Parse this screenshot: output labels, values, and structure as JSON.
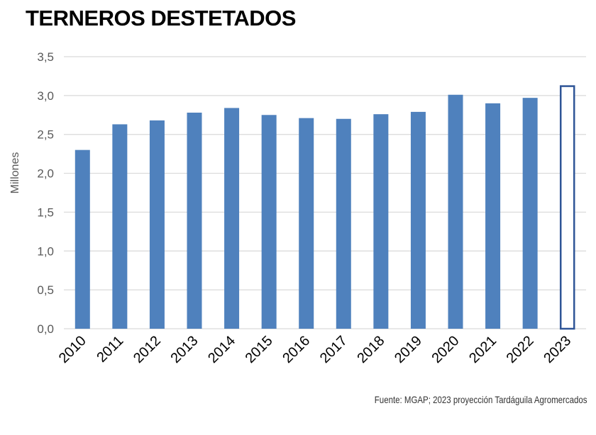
{
  "colors": {
    "bar_fill": "#4f81bd",
    "projected_outline": "#2f5597",
    "grid": "#d9d9d9",
    "tick_text": "#595959"
  },
  "source": "Fuente: MGAP; 2023 proyección Tardáguila Agromercados",
  "chart_data": {
    "type": "bar",
    "title": "TERNEROS DESTETADOS",
    "xlabel": "",
    "ylabel": "Millones",
    "categories": [
      "2010",
      "2011",
      "2012",
      "2013",
      "2014",
      "2015",
      "2016",
      "2017",
      "2018",
      "2019",
      "2020",
      "2021",
      "2022",
      "2023"
    ],
    "values": [
      2.3,
      2.63,
      2.68,
      2.78,
      2.84,
      2.75,
      2.71,
      2.7,
      2.76,
      2.79,
      3.01,
      2.9,
      2.97,
      3.13
    ],
    "projected": [
      false,
      false,
      false,
      false,
      false,
      false,
      false,
      false,
      false,
      false,
      false,
      false,
      false,
      true
    ],
    "ylim": [
      0,
      3.5
    ],
    "yticks": [
      0,
      0.5,
      1.0,
      1.5,
      2.0,
      2.5,
      3.0,
      3.5
    ],
    "ytick_labels": [
      "0,0",
      "0,5",
      "1,0",
      "1,5",
      "2,0",
      "2,5",
      "3,0",
      "3,5"
    ],
    "grid": true,
    "legend": "none"
  }
}
